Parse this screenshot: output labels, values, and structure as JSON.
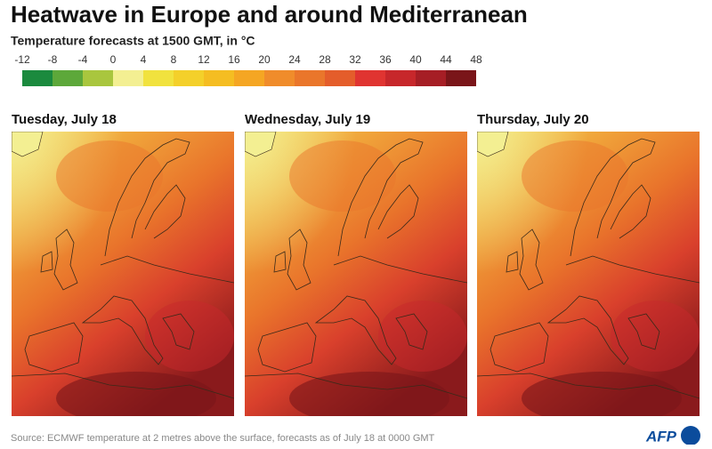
{
  "header": {
    "title": "Heatwave in Europe and around Mediterranean",
    "subtitle": "Temperature forecasts at 1500 GMT, in °C"
  },
  "legend": {
    "ticks": [
      -12,
      -8,
      -4,
      0,
      4,
      8,
      12,
      16,
      20,
      24,
      28,
      32,
      36,
      40,
      44,
      48
    ],
    "colors": [
      "#1b8a3e",
      "#5da83a",
      "#a9c63e",
      "#f3ef92",
      "#f1e23e",
      "#f4d02a",
      "#f5bd22",
      "#f5a623",
      "#f08c2b",
      "#ea762b",
      "#e45d2b",
      "#e03431",
      "#c7272b",
      "#a61e25",
      "#7a1519"
    ]
  },
  "panels": [
    {
      "label": "Tuesday, July 18"
    },
    {
      "label": "Wednesday, July 19"
    },
    {
      "label": "Thursday, July 20"
    }
  ],
  "footer": {
    "source": "Source: ECMWF temperature at 2 metres above the surface, forecasts as of July 18 at 0000 GMT",
    "logo": "AFP"
  }
}
